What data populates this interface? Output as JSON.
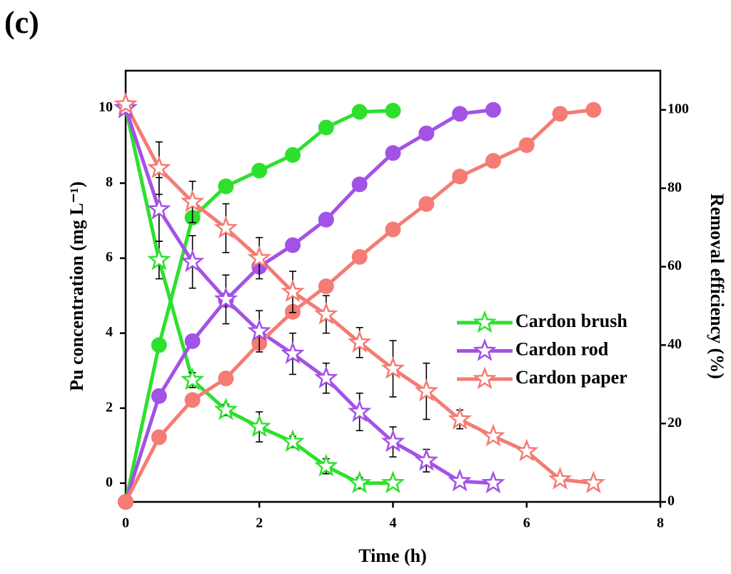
{
  "chart_data": {
    "type": "line",
    "panel_label": "(c)",
    "x_label": "Time (h)",
    "y_label": "Pu concentration (mg L⁻¹)",
    "y2_label": "Removal efficiency (%)",
    "xlim": [
      0,
      8
    ],
    "xticks": [
      0,
      2,
      4,
      6,
      8
    ],
    "ylim": [
      -0.5,
      11
    ],
    "yticks": [
      0,
      2,
      4,
      6,
      8,
      10
    ],
    "y2lim": [
      0,
      110
    ],
    "y2ticks": [
      0,
      20,
      40,
      60,
      80,
      100
    ],
    "series": [
      {
        "name": "Cardon brush",
        "color": "#2ee02e",
        "x": [
          0,
          0.5,
          1,
          1.5,
          2,
          2.5,
          3,
          3.5,
          4
        ],
        "values": [
          10.0,
          5.95,
          2.75,
          1.95,
          1.5,
          1.1,
          0.45,
          0.0,
          0.0
        ],
        "errors": [
          0,
          0.5,
          0.2,
          0.15,
          0.4,
          0.15,
          0.2,
          0.15,
          0
        ],
        "removal": [
          0,
          40,
          72.5,
          80.5,
          84.5,
          88.5,
          95.5,
          99.5,
          99.8
        ]
      },
      {
        "name": "Cardon rod",
        "color": "#a352e6",
        "x": [
          0,
          0.5,
          1,
          1.5,
          2,
          2.5,
          3,
          3.5,
          4,
          4.5,
          5,
          5.5
        ],
        "values": [
          10.0,
          7.3,
          5.9,
          4.9,
          4.05,
          3.45,
          2.8,
          1.9,
          1.1,
          0.6,
          0.05,
          0.0
        ],
        "errors": [
          0,
          0.85,
          0.7,
          0.65,
          0.55,
          0.55,
          0.4,
          0.5,
          0.4,
          0.3,
          0,
          0
        ],
        "removal": [
          0,
          27,
          41,
          51.5,
          60,
          65.5,
          72,
          81,
          89,
          94,
          99,
          100
        ]
      },
      {
        "name": "Cardon paper",
        "color": "#f47c74",
        "x": [
          0,
          0.5,
          1,
          1.5,
          2,
          2.5,
          3,
          3.5,
          4,
          4.5,
          5,
          5.5,
          6,
          6.5,
          7
        ],
        "values": [
          10.1,
          8.4,
          7.5,
          6.8,
          6.0,
          5.1,
          4.5,
          3.75,
          3.05,
          2.45,
          1.7,
          1.25,
          0.85,
          0.1,
          0.0
        ],
        "errors": [
          0,
          0.7,
          0.55,
          0.65,
          0.55,
          0.55,
          0.5,
          0.4,
          0.75,
          0.75,
          0.25,
          0,
          0,
          0,
          0
        ],
        "removal": [
          0,
          16.5,
          26,
          31.5,
          40.5,
          48.5,
          55,
          62.5,
          69.5,
          76,
          83,
          87,
          91,
          99,
          100
        ]
      }
    ]
  }
}
